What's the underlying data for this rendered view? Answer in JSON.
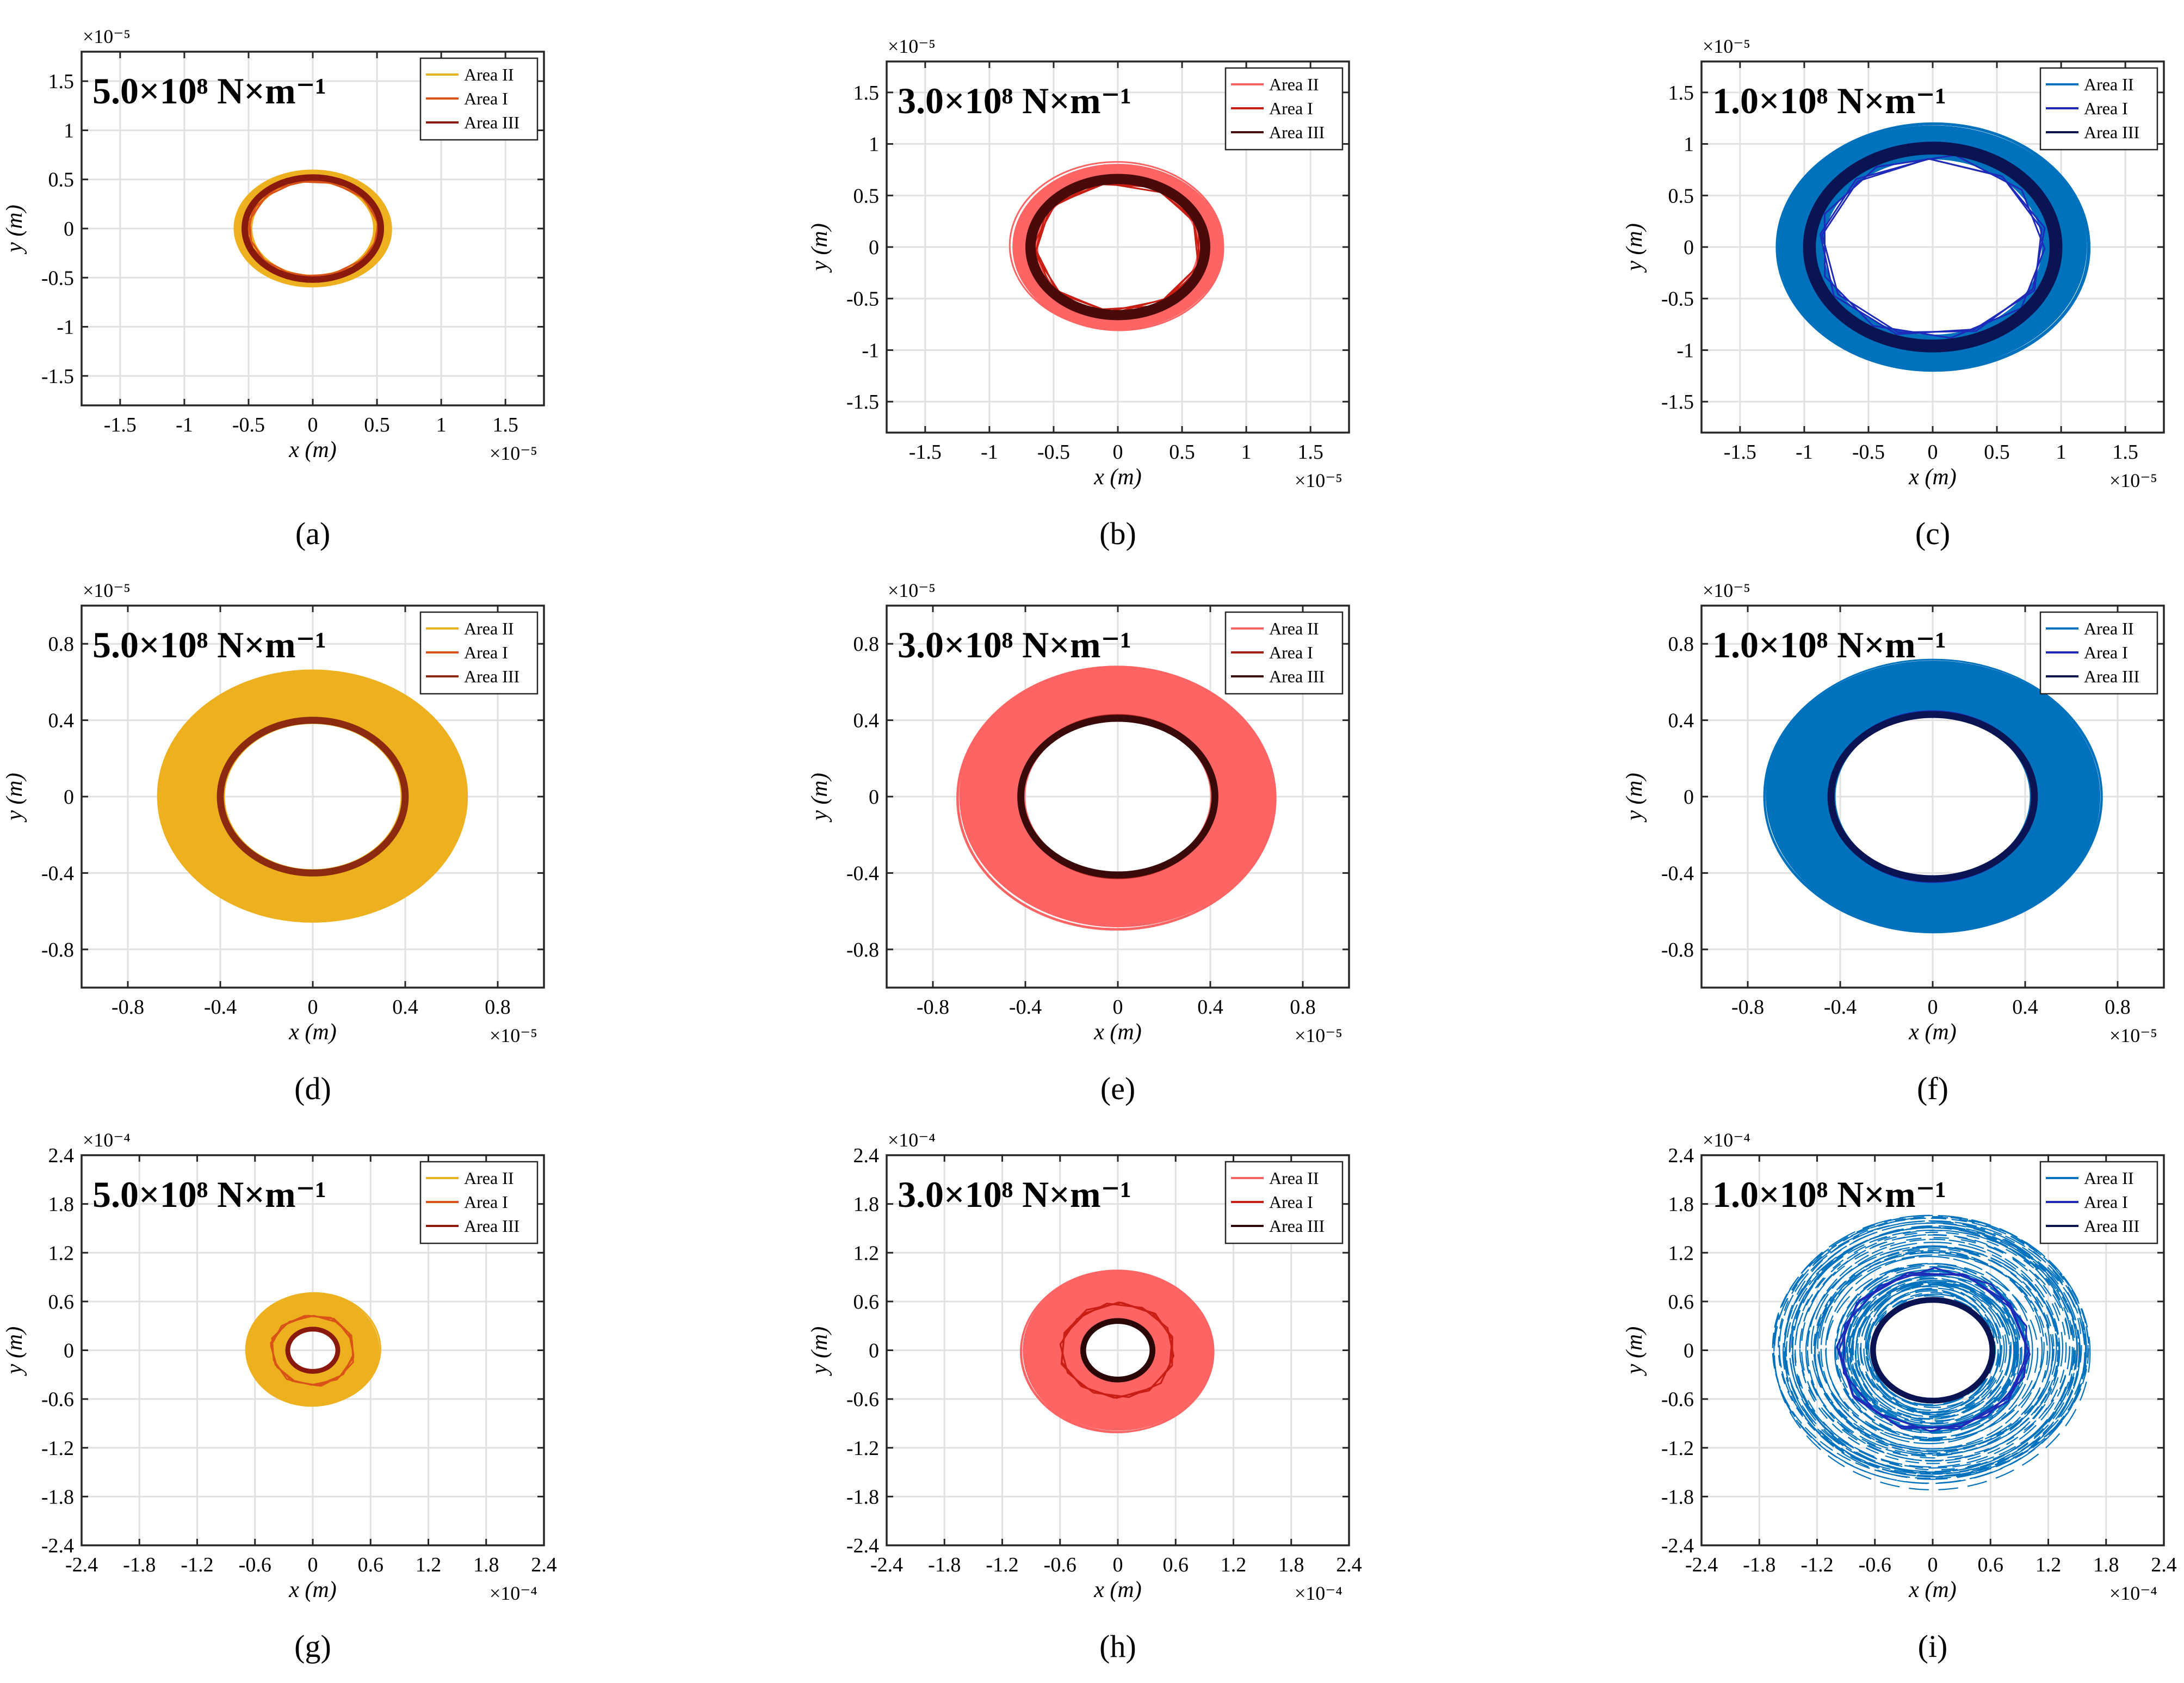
{
  "figure": {
    "legend_labels": [
      "Area II",
      "Area I",
      "Area III"
    ]
  },
  "chart_data": [
    {
      "panel_label": "(a)",
      "type": "scatter",
      "stiffness": "5.0×10⁸ N×m⁻¹",
      "xlabel": "x (m)",
      "ylabel": "y (m)",
      "exponent": "×10⁻⁵",
      "xlim": [
        -1.8,
        1.8
      ],
      "ylim": [
        -1.8,
        1.8
      ],
      "xticks": [
        -1.5,
        -1,
        -0.5,
        0,
        0.5,
        1,
        1.5
      ],
      "xticklabels": [
        "-1.5",
        "-1",
        "-0.5",
        "0",
        "0.5",
        "1",
        "1.5"
      ],
      "yticks": [
        -1.5,
        -1,
        -0.5,
        0,
        0.5,
        1,
        1.5
      ],
      "yticklabels": [
        "-1.5",
        "-1",
        "-0.5",
        "0",
        "0.5",
        "1",
        "1.5"
      ],
      "grid": true,
      "legend_position": "top-right",
      "series": [
        {
          "name": "Area II",
          "kind": "band",
          "color": "#EDB120",
          "inner": [
            0.47,
            0.47
          ],
          "outer": [
            0.6,
            0.58
          ]
        },
        {
          "name": "Area I",
          "kind": "polygon",
          "color": "#D95319",
          "sides": 11,
          "radius": [
            0.52,
            0.5
          ]
        },
        {
          "name": "Area III",
          "kind": "ring",
          "color": "#8B1A0E",
          "radius": [
            0.53,
            0.52
          ],
          "thickness": 0.05
        }
      ]
    },
    {
      "panel_label": "(b)",
      "type": "scatter",
      "stiffness": "3.0×10⁸ N×m⁻¹",
      "xlabel": "x (m)",
      "ylabel": "y (m)",
      "exponent": "×10⁻⁵",
      "xlim": [
        -1.8,
        1.8
      ],
      "ylim": [
        -1.8,
        1.8
      ],
      "xticks": [
        -1.5,
        -1,
        -0.5,
        0,
        0.5,
        1,
        1.5
      ],
      "xticklabels": [
        "-1.5",
        "-1",
        "-0.5",
        "0",
        "0.5",
        "1",
        "1.5"
      ],
      "yticks": [
        -1.5,
        -1,
        -0.5,
        0,
        0.5,
        1,
        1.5
      ],
      "yticklabels": [
        "-1.5",
        "-1",
        "-0.5",
        "0",
        "0.5",
        "1",
        "1.5"
      ],
      "grid": true,
      "legend_position": "top-right",
      "series": [
        {
          "name": "Area II",
          "kind": "band",
          "color": "#FF6464",
          "inner": [
            0.62,
            0.62
          ],
          "outer": [
            0.82,
            0.8
          ]
        },
        {
          "name": "Area I",
          "kind": "polygon",
          "color": "#C81E14",
          "sides": 9,
          "radius": [
            0.66,
            0.64
          ]
        },
        {
          "name": "Area III",
          "kind": "ring",
          "color": "#4A0A0A",
          "radius": [
            0.68,
            0.66
          ],
          "thickness": 0.08
        }
      ]
    },
    {
      "panel_label": "(c)",
      "type": "scatter",
      "stiffness": "1.0×10⁸ N×m⁻¹",
      "xlabel": "x (m)",
      "ylabel": "y (m)",
      "exponent": "×10⁻⁵",
      "xlim": [
        -1.8,
        1.8
      ],
      "ylim": [
        -1.8,
        1.8
      ],
      "xticks": [
        -1.5,
        -1,
        -0.5,
        0,
        0.5,
        1,
        1.5
      ],
      "xticklabels": [
        "-1.5",
        "-1",
        "-0.5",
        "0",
        "0.5",
        "1",
        "1.5"
      ],
      "yticks": [
        -1.5,
        -1,
        -0.5,
        0,
        0.5,
        1,
        1.5
      ],
      "yticklabels": [
        "-1.5",
        "-1",
        "-0.5",
        "0",
        "0.5",
        "1",
        "1.5"
      ],
      "grid": true,
      "legend_position": "top-right",
      "series": [
        {
          "name": "Area II",
          "kind": "band",
          "color": "#0072BD",
          "inner": [
            0.85,
            0.85
          ],
          "outer": [
            1.2,
            1.18
          ]
        },
        {
          "name": "Area I",
          "kind": "polygon",
          "color": "#1F2BB8",
          "sides": 9,
          "radius": [
            0.9,
            0.89
          ]
        },
        {
          "name": "Area III",
          "kind": "ring",
          "color": "#0A1452",
          "radius": [
            0.96,
            0.96
          ],
          "thickness": 0.1
        }
      ]
    },
    {
      "panel_label": "(d)",
      "type": "scatter",
      "stiffness": "5.0×10⁸ N×m⁻¹",
      "xlabel": "x (m)",
      "ylabel": "y (m)",
      "exponent": "×10⁻⁵",
      "xlim": [
        -1.0,
        1.0
      ],
      "ylim": [
        -1.0,
        1.0
      ],
      "xticks": [
        -0.8,
        -0.4,
        0,
        0.4,
        0.8
      ],
      "xticklabels": [
        "-0.8",
        "-0.4",
        "0",
        "0.4",
        "0.8"
      ],
      "yticks": [
        -0.8,
        -0.4,
        0,
        0.4,
        0.8
      ],
      "yticklabels": [
        "-0.8",
        "-0.4",
        "0",
        "0.4",
        "0.8"
      ],
      "grid": true,
      "legend_position": "top-right",
      "series": [
        {
          "name": "Area II",
          "kind": "band",
          "color": "#EDB120",
          "inner": [
            0.38,
            0.38
          ],
          "outer": [
            0.66,
            0.65
          ]
        },
        {
          "name": "Area I",
          "kind": "ring",
          "color": "#D95319",
          "radius": [
            0.4,
            0.4
          ],
          "thickness": 0.02
        },
        {
          "name": "Area III",
          "kind": "ring",
          "color": "#8B2A0E",
          "radius": [
            0.4,
            0.4
          ],
          "thickness": 0.03
        }
      ]
    },
    {
      "panel_label": "(e)",
      "type": "scatter",
      "stiffness": "3.0×10⁸ N×m⁻¹",
      "xlabel": "x (m)",
      "ylabel": "y (m)",
      "exponent": "×10⁻⁵",
      "xlim": [
        -1.0,
        1.0
      ],
      "ylim": [
        -1.0,
        1.0
      ],
      "xticks": [
        -0.8,
        -0.4,
        0,
        0.4,
        0.8
      ],
      "xticklabels": [
        "-0.8",
        "-0.4",
        "0",
        "0.4",
        "0.8"
      ],
      "yticks": [
        -0.8,
        -0.4,
        0,
        0.4,
        0.8
      ],
      "yticklabels": [
        "-0.8",
        "-0.4",
        "0",
        "0.4",
        "0.8"
      ],
      "grid": true,
      "legend_position": "top-right",
      "series": [
        {
          "name": "Area II",
          "kind": "band",
          "color": "#FF6464",
          "inner": [
            0.4,
            0.4
          ],
          "outer": [
            0.68,
            0.68
          ]
        },
        {
          "name": "Area I",
          "kind": "ring",
          "color": "#A01E14",
          "radius": [
            0.42,
            0.42
          ],
          "thickness": 0.02
        },
        {
          "name": "Area III",
          "kind": "ring",
          "color": "#3A0A0A",
          "radius": [
            0.42,
            0.41
          ],
          "thickness": 0.03
        }
      ]
    },
    {
      "panel_label": "(f)",
      "type": "scatter",
      "stiffness": "1.0×10⁸ N×m⁻¹",
      "xlabel": "x (m)",
      "ylabel": "y (m)",
      "exponent": "×10⁻⁵",
      "xlim": [
        -1.0,
        1.0
      ],
      "ylim": [
        -1.0,
        1.0
      ],
      "xticks": [
        -0.8,
        -0.4,
        0,
        0.4,
        0.8
      ],
      "xticklabels": [
        "-0.8",
        "-0.4",
        "0",
        "0.4",
        "0.8"
      ],
      "yticks": [
        -0.8,
        -0.4,
        0,
        0.4,
        0.8
      ],
      "yticklabels": [
        "-0.8",
        "-0.4",
        "0",
        "0.4",
        "0.8"
      ],
      "grid": true,
      "legend_position": "top-right",
      "series": [
        {
          "name": "Area II",
          "kind": "band",
          "color": "#0072BD",
          "inner": [
            0.42,
            0.42
          ],
          "outer": [
            0.72,
            0.7
          ]
        },
        {
          "name": "Area I",
          "kind": "ring",
          "color": "#1F2BB8",
          "radius": [
            0.44,
            0.44
          ],
          "thickness": 0.02
        },
        {
          "name": "Area III",
          "kind": "ring",
          "color": "#0A1452",
          "radius": [
            0.44,
            0.43
          ],
          "thickness": 0.03
        }
      ]
    },
    {
      "panel_label": "(g)",
      "type": "scatter",
      "stiffness": "5.0×10⁸ N×m⁻¹",
      "xlabel": "x (m)",
      "ylabel": "y (m)",
      "exponent": "×10⁻⁴",
      "xlim": [
        -2.4,
        2.4
      ],
      "ylim": [
        -2.4,
        2.4
      ],
      "xticks": [
        -2.4,
        -1.8,
        -1.2,
        -0.6,
        0,
        0.6,
        1.2,
        1.8,
        2.4
      ],
      "xticklabels": [
        "-2.4",
        "-1.8",
        "-1.2",
        "-0.6",
        "0",
        "0.6",
        "1.2",
        "1.8",
        "2.4"
      ],
      "yticks": [
        -2.4,
        -1.8,
        -1.2,
        -0.6,
        0,
        0.6,
        1.2,
        1.8,
        2.4
      ],
      "yticklabels": [
        "-2.4",
        "-1.8",
        "-1.2",
        "-0.6",
        "0",
        "0.6",
        "1.2",
        "1.8",
        "2.4"
      ],
      "grid": true,
      "legend_position": "top-right",
      "series": [
        {
          "name": "Area II",
          "kind": "band",
          "color": "#EDB120",
          "inner": [
            0.24,
            0.24
          ],
          "outer": [
            0.68,
            0.68
          ]
        },
        {
          "name": "Area I",
          "kind": "polygon",
          "color": "#D95319",
          "sides": 10,
          "radius": [
            0.44,
            0.44
          ]
        },
        {
          "name": "Area III",
          "kind": "ring",
          "color": "#8B1A0E",
          "radius": [
            0.26,
            0.26
          ],
          "thickness": 0.05
        }
      ]
    },
    {
      "panel_label": "(h)",
      "type": "scatter",
      "stiffness": "3.0×10⁸ N×m⁻¹",
      "xlabel": "x (m)",
      "ylabel": "y (m)",
      "exponent": "×10⁻⁴",
      "xlim": [
        -2.4,
        2.4
      ],
      "ylim": [
        -2.4,
        2.4
      ],
      "xticks": [
        -2.4,
        -1.8,
        -1.2,
        -0.6,
        0,
        0.6,
        1.2,
        1.8,
        2.4
      ],
      "xticklabels": [
        "-2.4",
        "-1.8",
        "-1.2",
        "-0.6",
        "0",
        "0.6",
        "1.2",
        "1.8",
        "2.4"
      ],
      "yticks": [
        -2.4,
        -1.8,
        -1.2,
        -0.6,
        0,
        0.6,
        1.2,
        1.8,
        2.4
      ],
      "yticklabels": [
        "-2.4",
        "-1.8",
        "-1.2",
        "-0.6",
        "0",
        "0.6",
        "1.2",
        "1.8",
        "2.4"
      ],
      "grid": true,
      "legend_position": "top-right",
      "series": [
        {
          "name": "Area II",
          "kind": "band",
          "color": "#FF6464",
          "inner": [
            0.34,
            0.34
          ],
          "outer": [
            0.98,
            0.98
          ]
        },
        {
          "name": "Area I",
          "kind": "polygon",
          "color": "#C81E14",
          "sides": 10,
          "radius": [
            0.6,
            0.58
          ]
        },
        {
          "name": "Area III",
          "kind": "ring",
          "color": "#2A0606",
          "radius": [
            0.36,
            0.36
          ],
          "thickness": 0.06
        }
      ]
    },
    {
      "panel_label": "(i)",
      "type": "scatter",
      "stiffness": "1.0×10⁸ N×m⁻¹",
      "xlabel": "x (m)",
      "ylabel": "y (m)",
      "exponent": "×10⁻⁴",
      "xlim": [
        -2.4,
        2.4
      ],
      "ylim": [
        -2.4,
        2.4
      ],
      "xticks": [
        -2.4,
        -1.8,
        -1.2,
        -0.6,
        0,
        0.6,
        1.2,
        1.8,
        2.4
      ],
      "xticklabels": [
        "-2.4",
        "-1.8",
        "-1.2",
        "-0.6",
        "0",
        "0.6",
        "1.2",
        "1.8",
        "2.4"
      ],
      "yticks": [
        -2.4,
        -1.8,
        -1.2,
        -0.6,
        0,
        0.6,
        1.2,
        1.8,
        2.4
      ],
      "yticklabels": [
        "-2.4",
        "-1.8",
        "-1.2",
        "-0.6",
        "0",
        "0.6",
        "1.2",
        "1.8",
        "2.4"
      ],
      "grid": true,
      "legend_position": "top-right",
      "series": [
        {
          "name": "Area II",
          "kind": "rings",
          "color": "#0072BD",
          "inner": [
            0.6,
            0.6
          ],
          "outer": [
            1.65,
            1.7
          ]
        },
        {
          "name": "Area I",
          "kind": "polygon",
          "color": "#1F2BB8",
          "sides": 10,
          "radius": [
            1.0,
            1.0
          ]
        },
        {
          "name": "Area III",
          "kind": "ring",
          "color": "#0A1452",
          "radius": [
            0.62,
            0.62
          ],
          "thickness": 0.06
        }
      ]
    }
  ]
}
